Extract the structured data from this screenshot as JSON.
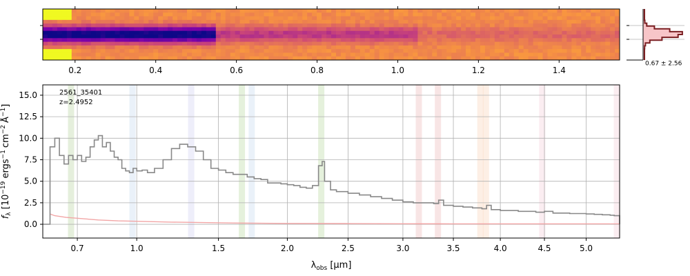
{
  "chart_data": [
    {
      "type": "heatmap",
      "panel": "2d-spectrum",
      "xaxis_ticks": [
        "0.2",
        "0.4",
        "0.6",
        "0.8",
        "1.0",
        "1.2",
        "1.4"
      ],
      "xlim": [
        0.12,
        1.55
      ],
      "colormap": "plasma"
    },
    {
      "type": "line",
      "panel": "spatial-profile",
      "annotation": "0.67 ± 2.56",
      "fill_color": "#f7c5c8",
      "line_color": "#7a1f22"
    },
    {
      "type": "line",
      "panel": "1d-spectrum",
      "annotation_id": "2561_35401",
      "annotation_z": "z=2.4952",
      "xlabel_parts": [
        "λ",
        "obs",
        " [μm]"
      ],
      "ylabel_parts": [
        "f",
        "λ",
        " [10",
        "−19",
        " ergs",
        "−1",
        "cm",
        "−2",
        "Å",
        "−1",
        "]"
      ],
      "xticks": [
        "0.7",
        "1.0",
        "1.5",
        "2.0",
        "2.5",
        "3.0",
        "3.5",
        "4.0",
        "4.5",
        "5.0"
      ],
      "xtick_values": [
        0.7,
        1.0,
        1.5,
        2.0,
        2.5,
        3.0,
        3.5,
        4.0,
        4.5,
        5.0
      ],
      "yticks": [
        "0.0",
        "2.5",
        "5.0",
        "7.5",
        "10.0",
        "12.5",
        "15.0"
      ],
      "ytick_values": [
        0.0,
        2.5,
        5.0,
        7.5,
        10.0,
        12.5,
        15.0
      ],
      "xlim": [
        0.55,
        5.42
      ],
      "ylim": [
        -1.6,
        16.2
      ],
      "grid": true,
      "series": [
        {
          "color": "#888888",
          "x": [
            0.55,
            0.58,
            0.6,
            0.62,
            0.64,
            0.66,
            0.68,
            0.7,
            0.72,
            0.74,
            0.76,
            0.78,
            0.8,
            0.82,
            0.84,
            0.86,
            0.88,
            0.9,
            0.92,
            0.94,
            0.96,
            0.98,
            1.0,
            1.03,
            1.06,
            1.1,
            1.15,
            1.2,
            1.25,
            1.3,
            1.35,
            1.4,
            1.45,
            1.5,
            1.55,
            1.6,
            1.65,
            1.7,
            1.75,
            1.8,
            1.85,
            1.9,
            1.95,
            2.0,
            2.05,
            2.1,
            2.15,
            2.2,
            2.25,
            2.28,
            2.3,
            2.35,
            2.4,
            2.5,
            2.6,
            2.7,
            2.8,
            2.9,
            3.0,
            3.1,
            3.2,
            3.3,
            3.35,
            3.4,
            3.5,
            3.6,
            3.7,
            3.8,
            3.85,
            3.9,
            4.0,
            4.2,
            4.4,
            4.5,
            4.6,
            4.8,
            5.0,
            5.1,
            5.2,
            5.3,
            5.35,
            5.42
          ],
          "y": [
            0.0,
            9.0,
            10.0,
            8.0,
            7.0,
            8.0,
            7.5,
            8.0,
            7.3,
            7.8,
            9.0,
            9.8,
            10.3,
            9.0,
            9.5,
            8.5,
            7.8,
            7.5,
            6.5,
            6.2,
            6.0,
            6.5,
            6.2,
            6.3,
            6.0,
            6.5,
            7.5,
            8.8,
            9.3,
            9.0,
            8.5,
            7.5,
            6.5,
            6.3,
            6.0,
            5.8,
            5.8,
            5.5,
            5.3,
            5.2,
            4.8,
            4.8,
            4.7,
            4.6,
            4.5,
            4.3,
            4.2,
            4.5,
            6.8,
            7.3,
            5.0,
            4.0,
            3.8,
            3.6,
            3.4,
            3.2,
            3.0,
            2.8,
            2.6,
            2.5,
            2.5,
            2.4,
            2.8,
            2.2,
            2.1,
            2.0,
            1.9,
            1.8,
            2.2,
            1.7,
            1.6,
            1.5,
            1.4,
            1.5,
            1.3,
            1.25,
            1.2,
            1.15,
            1.1,
            1.05,
            1.0,
            0.0
          ]
        },
        {
          "color": "#f2a5a5",
          "x": [
            0.58,
            0.6,
            0.65,
            0.7,
            0.8,
            0.9,
            1.0,
            1.2,
            1.4,
            1.6,
            2.0,
            2.5,
            3.0,
            3.5,
            4.0,
            4.5,
            5.0,
            5.3
          ],
          "y": [
            1.2,
            1.0,
            0.8,
            0.7,
            0.5,
            0.4,
            0.35,
            0.25,
            0.2,
            0.15,
            0.1,
            0.08,
            0.06,
            0.05,
            0.05,
            0.05,
            0.05,
            0.05
          ]
        }
      ],
      "bands": [
        {
          "x": 0.67,
          "color": "#a8c98a"
        },
        {
          "x": 0.975,
          "color": "#b8d0ec"
        },
        {
          "x": 1.32,
          "color": "#c6c6ee"
        },
        {
          "x": 1.66,
          "color": "#a8d08c"
        },
        {
          "x": 1.73,
          "color": "#b8d0ec"
        },
        {
          "x": 2.27,
          "color": "#a8d08c"
        },
        {
          "x": 3.15,
          "color": "#e8a8a8"
        },
        {
          "x": 3.34,
          "color": "#e8a8a8"
        },
        {
          "x": 3.78,
          "color": "#f8caa8"
        },
        {
          "x": 3.84,
          "color": "#f8caa8"
        },
        {
          "x": 4.47,
          "color": "#f2c2d0"
        },
        {
          "x": 5.38,
          "color": "#f2c2d0"
        }
      ]
    }
  ]
}
